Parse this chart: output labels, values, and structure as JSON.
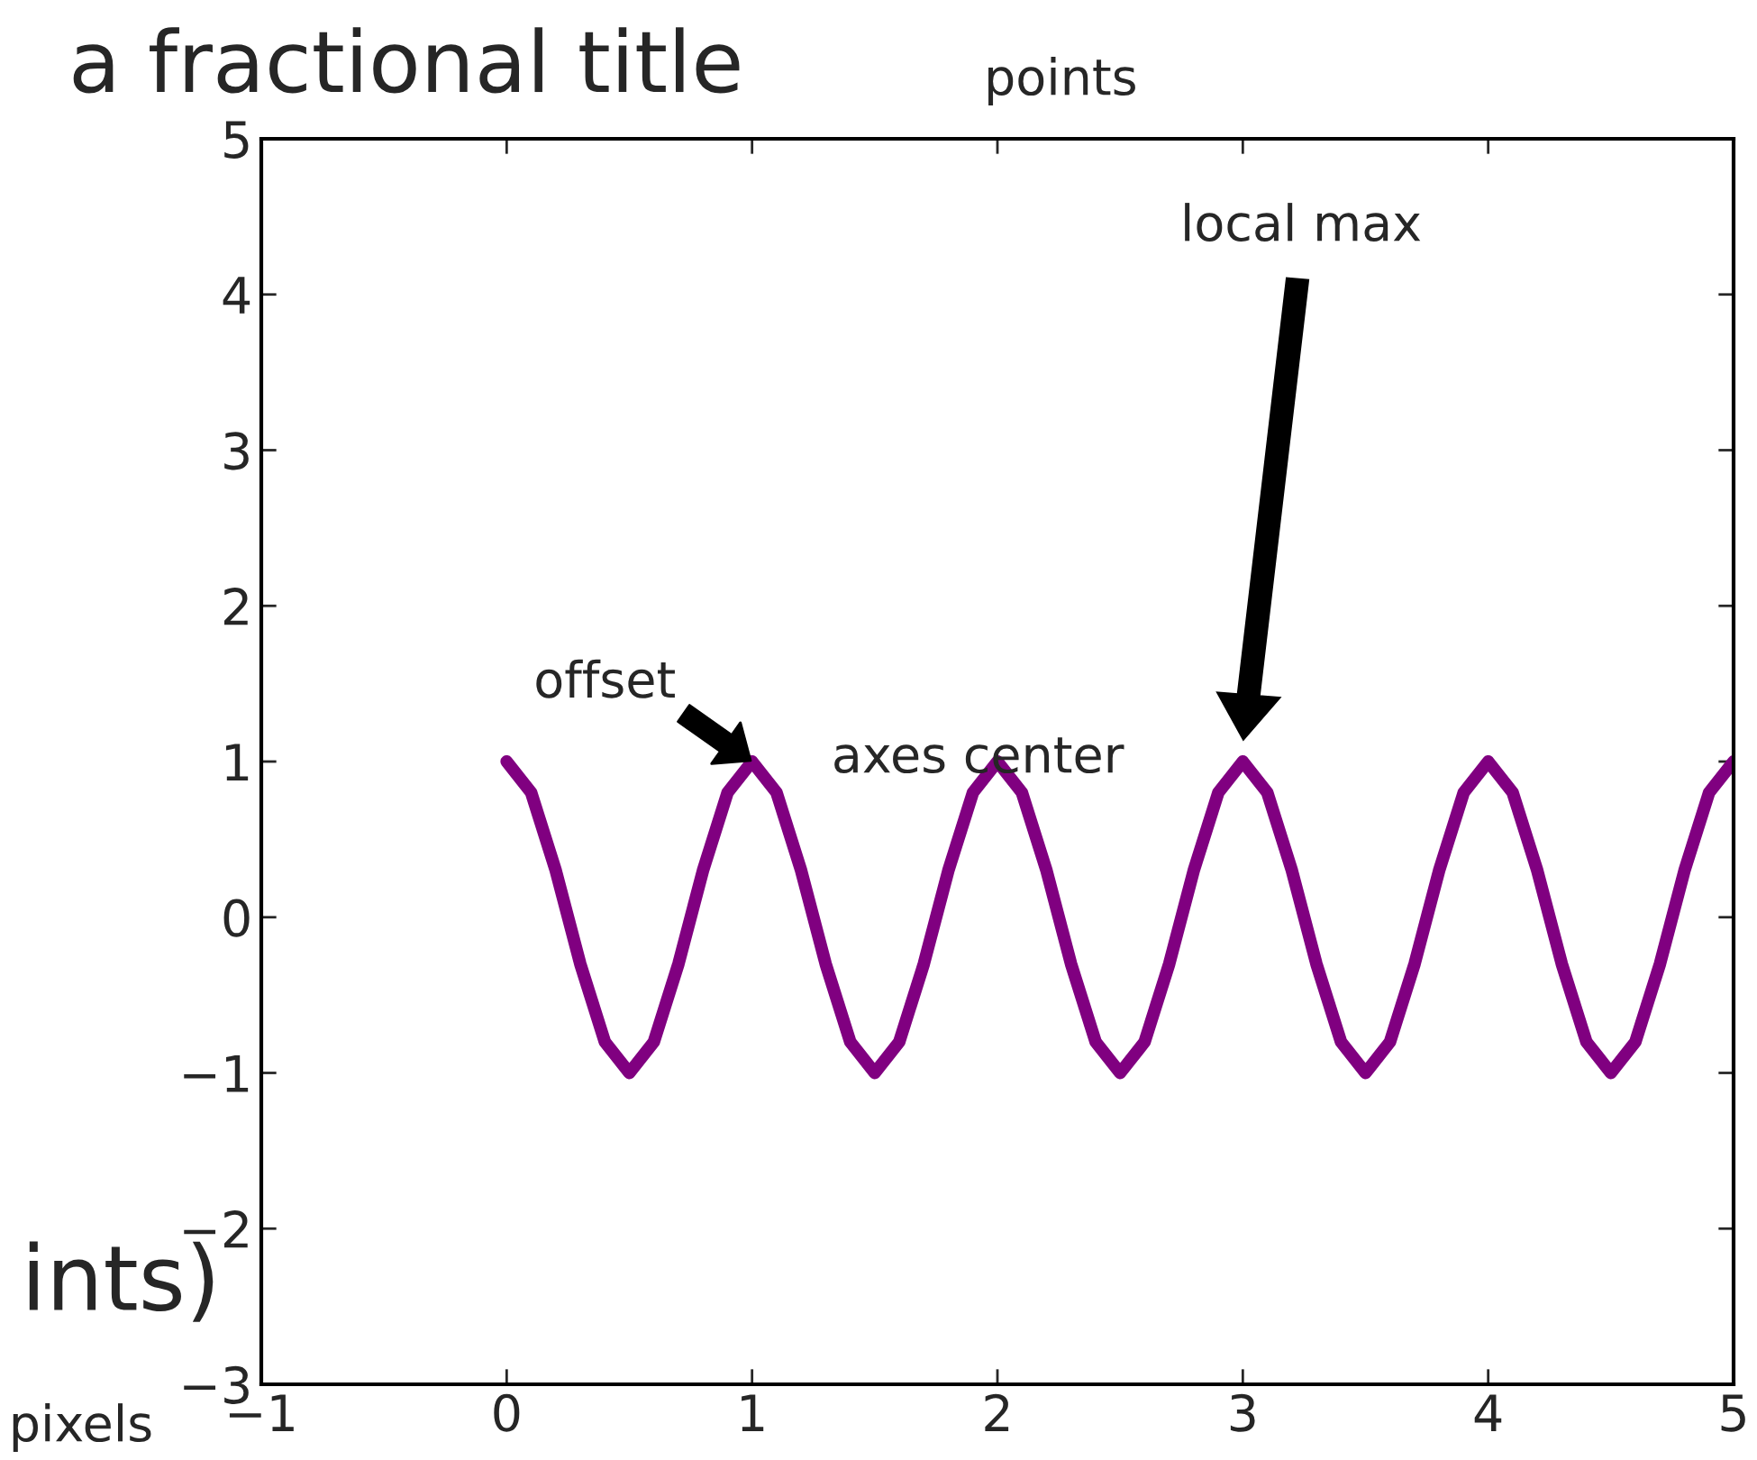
{
  "chart_data": {
    "type": "line",
    "title": "a fractional title",
    "x": [
      0,
      0.1,
      0.2,
      0.3,
      0.4,
      0.5,
      0.6,
      0.7,
      0.8,
      0.9,
      1,
      1.1,
      1.2,
      1.3,
      1.4,
      1.5,
      1.6,
      1.7,
      1.8,
      1.9,
      2,
      2.1,
      2.2,
      2.3,
      2.4,
      2.5,
      2.6,
      2.7,
      2.8,
      2.9,
      3,
      3.1,
      3.2,
      3.3,
      3.4,
      3.5,
      3.6,
      3.7,
      3.8,
      3.9,
      4,
      4.1,
      4.2,
      4.3,
      4.4,
      4.5,
      4.6,
      4.7,
      4.8,
      4.9,
      5
    ],
    "series": [
      {
        "color": "#800080",
        "values": [
          1,
          0.8,
          0.3,
          -0.3,
          -0.8,
          -1,
          -0.8,
          -0.3,
          0.3,
          0.8,
          1,
          0.8,
          0.3,
          -0.3,
          -0.8,
          -1,
          -0.8,
          -0.3,
          0.3,
          0.8,
          1,
          0.8,
          0.3,
          -0.3,
          -0.8,
          -1,
          -0.8,
          -0.3,
          0.3,
          0.8,
          1,
          0.8,
          0.3,
          -0.3,
          -0.8,
          -1,
          -0.8,
          -0.3,
          0.3,
          0.8,
          1,
          0.8,
          0.3,
          -0.3,
          -0.8,
          -1,
          -0.8,
          -0.3,
          0.3,
          0.8,
          1
        ]
      }
    ],
    "xlim": [
      -1,
      5
    ],
    "ylim": [
      -3,
      5
    ],
    "xticks": [
      -1,
      0,
      1,
      2,
      3,
      4,
      5
    ],
    "yticks": [
      -3,
      -2,
      -1,
      0,
      1,
      2,
      3,
      4,
      5
    ],
    "grid": false,
    "marker": "none",
    "line_style": "solid",
    "annotations": [
      "local max",
      {
        "text": "offset",
        "x": 1,
        "y": 1
      },
      "axes center",
      "points",
      "ints)",
      "pixels"
    ]
  }
}
